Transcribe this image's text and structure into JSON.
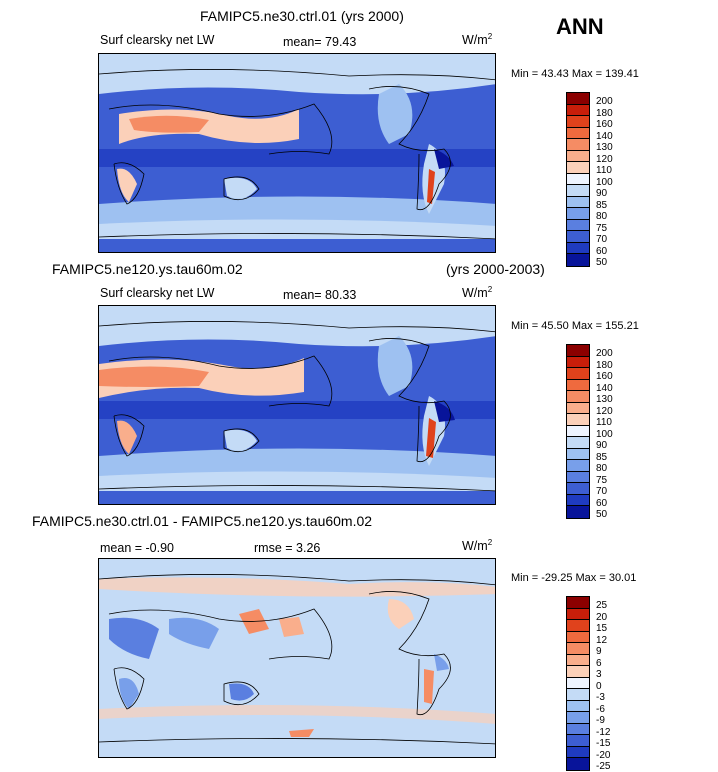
{
  "season": "ANN",
  "panels": [
    {
      "title_left": "FAMIPC5.ne30.ctrl.01 (yrs 2000)",
      "title_right": "",
      "subtitle_left": "Surf clearsky net LW",
      "stat1": "mean=  79.43",
      "stat2": "",
      "units": "W/m",
      "units_sup": "2",
      "minmax": "Min =  43.43 Max = 139.41",
      "colorbar_labels": [
        "200",
        "180",
        "160",
        "140",
        "130",
        "120",
        "110",
        "100",
        "90",
        "85",
        "80",
        "75",
        "70",
        "60",
        "50"
      ]
    },
    {
      "title_left": "FAMIPC5.ne120.ys.tau60m.02",
      "title_right": "(yrs 2000-2003)",
      "subtitle_left": "Surf clearsky net LW",
      "stat1": "mean=  80.33",
      "stat2": "",
      "units": "W/m",
      "units_sup": "2",
      "minmax": "Min =  45.50 Max = 155.21",
      "colorbar_labels": [
        "200",
        "180",
        "160",
        "140",
        "130",
        "120",
        "110",
        "100",
        "90",
        "85",
        "80",
        "75",
        "70",
        "60",
        "50"
      ]
    },
    {
      "title_left": "FAMIPC5.ne30.ctrl.01 - FAMIPC5.ne120.ys.tau60m.02",
      "title_right": "",
      "subtitle_left": "mean =  -0.90",
      "stat1": "rmse =   3.26",
      "stat2": "",
      "units": "W/m",
      "units_sup": "2",
      "minmax": "Min = -29.25 Max =  30.01",
      "colorbar_labels": [
        "25",
        "20",
        "15",
        "12",
        "9",
        "6",
        "3",
        "0",
        "-3",
        "-6",
        "-9",
        "-12",
        "-15",
        "-20",
        "-25"
      ]
    }
  ],
  "colorbar_colors": [
    "#8b0000",
    "#c81e0a",
    "#e0421c",
    "#ef6a3e",
    "#f58c64",
    "#f9ae8c",
    "#fbd0b9",
    "#eef4ff",
    "#c4dbf6",
    "#9ec1f1",
    "#789fea",
    "#5a7fe0",
    "#3d5ed2",
    "#1f3bc0",
    "#08149a"
  ],
  "map_colors": {
    "ocean_deep": "#3d5ed2",
    "ocean_mid": "#5a7fe0",
    "subtropics": "#9ec1f1",
    "light": "#c4dbf6",
    "pale": "#eef4ff",
    "warm1": "#fbd0b9",
    "warm2": "#f58c64",
    "warm3": "#e0421c",
    "dark": "#08149a"
  }
}
